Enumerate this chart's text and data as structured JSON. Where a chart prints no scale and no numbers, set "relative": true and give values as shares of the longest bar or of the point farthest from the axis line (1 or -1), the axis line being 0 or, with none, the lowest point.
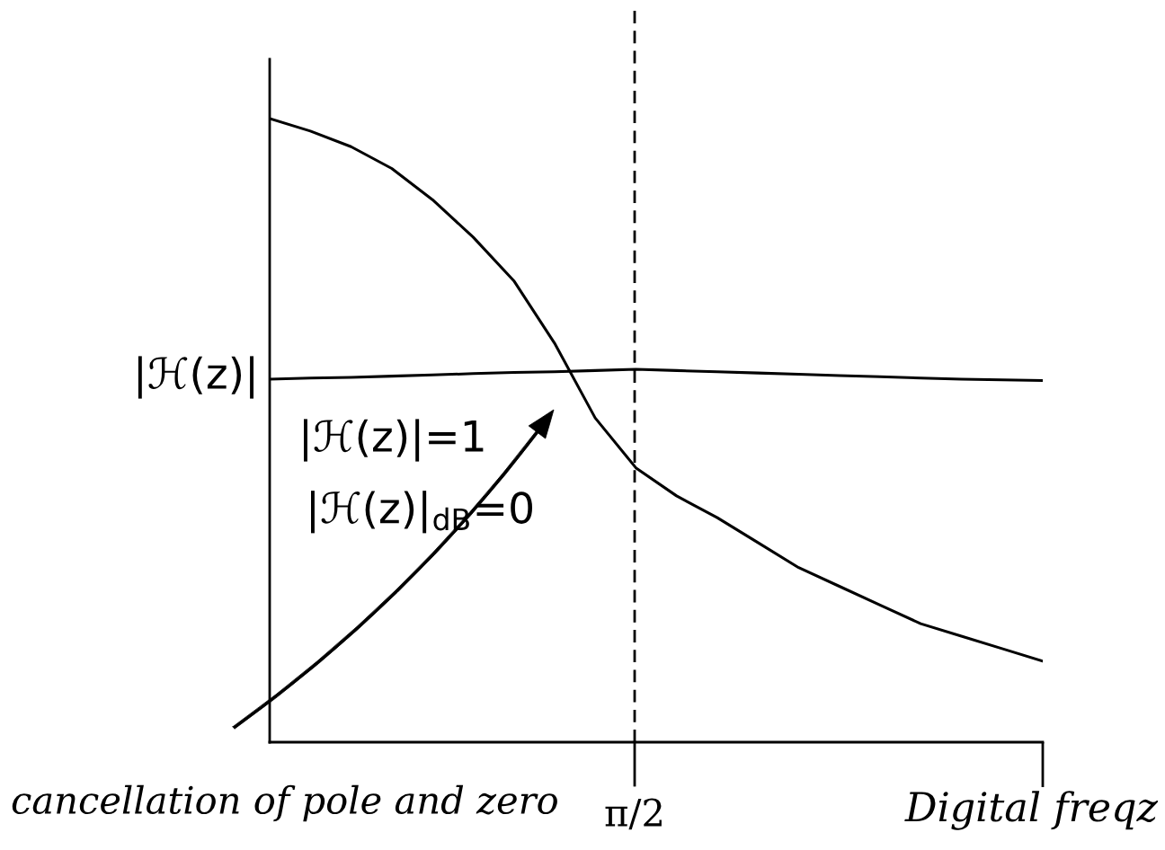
{
  "chart_data": {
    "type": "line",
    "relative": true,
    "xlabel": "Digital freqz",
    "ylabel": "|ℋ(z)|",
    "categories": [
      null,
      null,
      null,
      null,
      null,
      null,
      null,
      null,
      null,
      null,
      null,
      null,
      null,
      null,
      null,
      null,
      null,
      null,
      null,
      null
    ],
    "series": [
      {
        "color": "#000000",
        "values": [
          1.0,
          0.98,
          0.955,
          0.92,
          0.87,
          0.81,
          0.74,
          0.64,
          0.52,
          0.44,
          0.395,
          0.36,
          0.32,
          0.28,
          0.25,
          0.22,
          0.19,
          0.17,
          0.15,
          0.13
        ]
      },
      {
        "color": "#000000",
        "values": [
          0.582,
          0.584,
          0.585,
          0.587,
          0.589,
          0.591,
          0.593,
          0.594,
          0.596,
          0.598,
          0.596,
          0.594,
          0.592,
          0.59,
          0.588,
          0.586,
          0.584,
          0.582,
          0.581,
          0.58
        ]
      }
    ],
    "annotations": [
      "|ℋ(z)|=1",
      "|ℋ(z)|$_{dB}$=0",
      "cancellation of pole and zero",
      "π/2"
    ],
    "line_style": "solid",
    "marker": "none"
  }
}
